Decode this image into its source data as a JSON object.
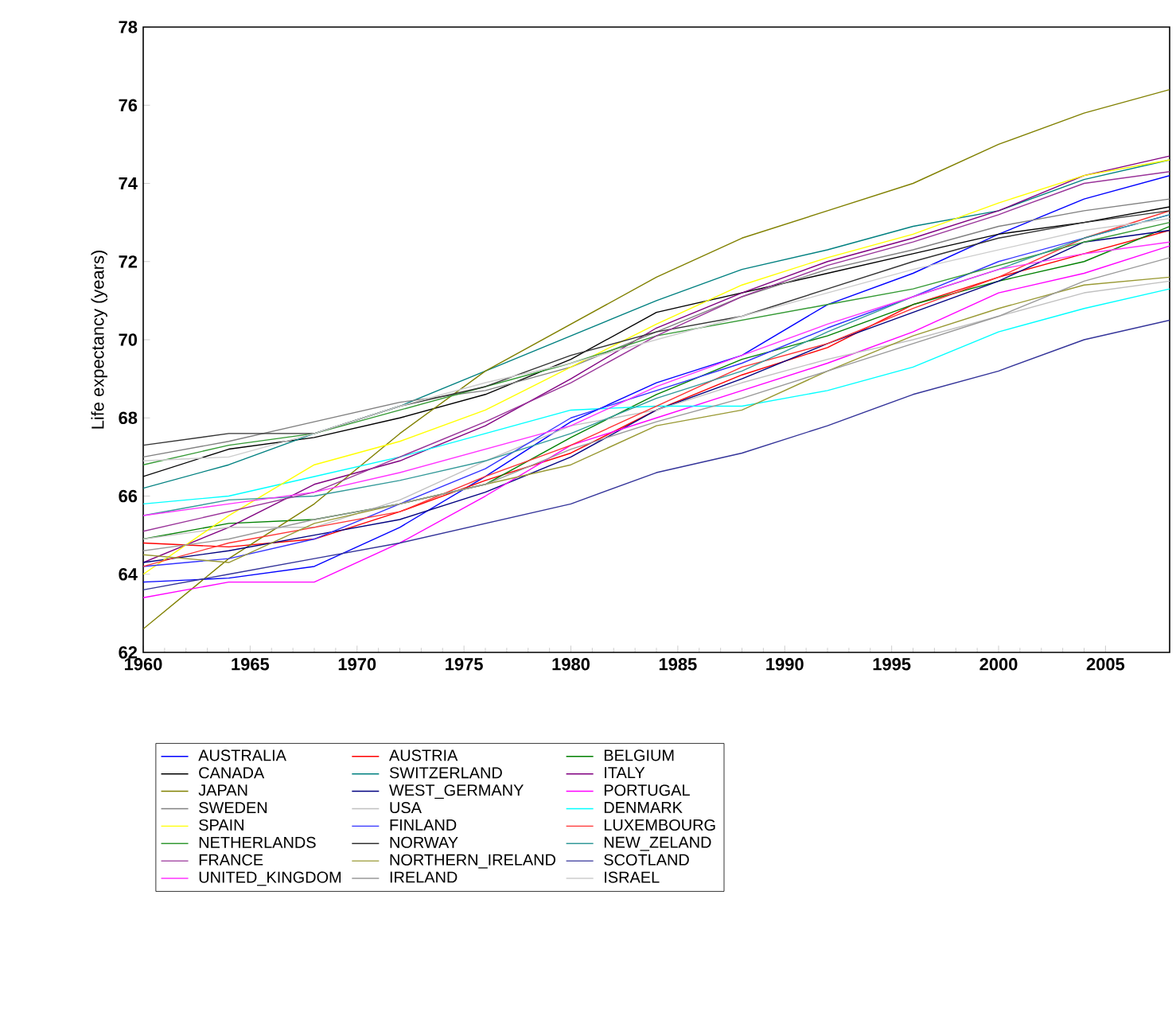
{
  "chart_data": {
    "type": "line",
    "ylabel": "Life expectancy (years)",
    "x": [
      1960,
      1964,
      1968,
      1972,
      1976,
      1980,
      1984,
      1988,
      1992,
      1996,
      2000,
      2004,
      2008
    ],
    "xlim": [
      1960,
      2008
    ],
    "xticks": [
      1960,
      1965,
      1970,
      1975,
      1980,
      1985,
      1990,
      1995,
      2000,
      2005
    ],
    "ylim": [
      62,
      78
    ],
    "yticks": [
      62,
      64,
      66,
      68,
      70,
      72,
      74,
      76,
      78
    ],
    "grid": false,
    "legend": "bottom",
    "marker": "none",
    "line_style": "solid",
    "series": [
      {
        "name": "AUSTRALIA",
        "color": "#0000ff",
        "values": [
          63.8,
          63.9,
          64.2,
          65.2,
          66.5,
          67.9,
          68.9,
          69.6,
          70.9,
          71.7,
          72.7,
          73.6,
          74.2
        ]
      },
      {
        "name": "AUSTRIA",
        "color": "#ff0000",
        "values": [
          64.8,
          64.7,
          64.9,
          65.6,
          66.4,
          67.1,
          68.2,
          69.1,
          69.8,
          70.9,
          71.6,
          72.2,
          72.8
        ]
      },
      {
        "name": "BELGIUM",
        "color": "#008000",
        "values": [
          64.9,
          65.3,
          65.4,
          65.8,
          66.3,
          67.5,
          68.6,
          69.5,
          70.1,
          70.9,
          71.5,
          72.0,
          72.9
        ]
      },
      {
        "name": "CANADA",
        "color": "#000000",
        "values": [
          66.5,
          67.2,
          67.5,
          68.0,
          68.6,
          69.5,
          70.7,
          71.2,
          71.7,
          72.2,
          72.7,
          73.0,
          73.4
        ]
      },
      {
        "name": "SWITZERLAND",
        "color": "#008080",
        "values": [
          66.2,
          66.8,
          67.6,
          68.3,
          69.2,
          70.1,
          71.0,
          71.8,
          72.3,
          72.9,
          73.3,
          74.1,
          74.6
        ]
      },
      {
        "name": "ITALY",
        "color": "#800080",
        "values": [
          64.3,
          65.2,
          66.3,
          66.9,
          67.8,
          69.0,
          70.3,
          71.2,
          72.0,
          72.6,
          73.3,
          74.2,
          74.7
        ]
      },
      {
        "name": "JAPAN",
        "color": "#808000",
        "values": [
          62.6,
          64.4,
          65.8,
          67.6,
          69.2,
          70.4,
          71.6,
          72.6,
          73.3,
          74.0,
          75.0,
          75.8,
          76.4
        ]
      },
      {
        "name": "WEST_GERMANY",
        "color": "#000080",
        "values": [
          64.3,
          64.6,
          65.0,
          65.4,
          66.1,
          67.0,
          68.2,
          69.0,
          69.9,
          70.7,
          71.5,
          72.5,
          72.8
        ]
      },
      {
        "name": "PORTUGAL",
        "color": "#ff00ff",
        "values": [
          63.4,
          63.8,
          63.8,
          64.8,
          66.0,
          67.3,
          68.0,
          68.7,
          69.4,
          70.2,
          71.2,
          71.7,
          72.4
        ]
      },
      {
        "name": "SWEDEN",
        "color": "#808080",
        "values": [
          67.0,
          67.4,
          67.9,
          68.4,
          68.7,
          69.3,
          70.2,
          71.1,
          71.8,
          72.3,
          72.9,
          73.3,
          73.6
        ]
      },
      {
        "name": "USA",
        "color": "#c0c0c0",
        "values": [
          64.9,
          65.2,
          65.2,
          65.9,
          66.9,
          67.8,
          68.2,
          68.9,
          69.5,
          70.0,
          70.6,
          71.2,
          71.5
        ]
      },
      {
        "name": "DENMARK",
        "color": "#00ffff",
        "values": [
          65.8,
          66.0,
          66.5,
          67.0,
          67.6,
          68.2,
          68.3,
          68.3,
          68.7,
          69.3,
          70.2,
          70.8,
          71.3
        ]
      },
      {
        "name": "SPAIN",
        "color": "#ffff00",
        "values": [
          64.0,
          65.5,
          66.8,
          67.4,
          68.2,
          69.3,
          70.4,
          71.4,
          72.1,
          72.7,
          73.5,
          74.2,
          74.6
        ]
      },
      {
        "name": "FINLAND",
        "color": "#3333ff",
        "values": [
          64.2,
          64.4,
          64.9,
          65.8,
          66.7,
          68.0,
          68.7,
          69.4,
          70.3,
          71.1,
          72.0,
          72.6,
          73.2
        ]
      },
      {
        "name": "LUXEMBOURG",
        "color": "#ff3333",
        "values": [
          64.2,
          64.8,
          65.2,
          65.6,
          66.5,
          67.3,
          68.3,
          69.3,
          69.9,
          70.8,
          71.6,
          72.6,
          73.3
        ]
      },
      {
        "name": "NETHERLANDS",
        "color": "#339933",
        "values": [
          66.8,
          67.3,
          67.6,
          68.2,
          68.8,
          69.4,
          70.1,
          70.5,
          70.9,
          71.3,
          71.9,
          72.5,
          73.0
        ]
      },
      {
        "name": "NORWAY",
        "color": "#333333",
        "values": [
          67.3,
          67.6,
          67.6,
          68.3,
          68.8,
          69.6,
          70.2,
          70.6,
          71.3,
          72.0,
          72.6,
          73.0,
          73.3
        ]
      },
      {
        "name": "NEW_ZELAND",
        "color": "#339999",
        "values": [
          65.5,
          65.9,
          66.0,
          66.4,
          66.9,
          67.6,
          68.5,
          69.2,
          70.2,
          71.1,
          71.8,
          72.6,
          73.2
        ]
      },
      {
        "name": "FRANCE",
        "color": "#993399",
        "values": [
          65.1,
          65.6,
          66.1,
          67.0,
          67.9,
          68.9,
          70.1,
          71.1,
          71.9,
          72.5,
          73.2,
          74.0,
          74.3
        ]
      },
      {
        "name": "NORTHERN_IRELAND",
        "color": "#999933",
        "values": [
          64.5,
          64.3,
          65.3,
          65.8,
          66.3,
          66.8,
          67.8,
          68.2,
          69.2,
          70.1,
          70.8,
          71.4,
          71.6
        ]
      },
      {
        "name": "SCOTLAND",
        "color": "#333399",
        "values": [
          63.6,
          64.0,
          64.4,
          64.8,
          65.3,
          65.8,
          66.6,
          67.1,
          67.8,
          68.6,
          69.2,
          70.0,
          70.5
        ]
      },
      {
        "name": "UNITED_KINGDOM",
        "color": "#ff33ff",
        "values": [
          65.5,
          65.8,
          66.1,
          66.6,
          67.2,
          67.8,
          68.8,
          69.6,
          70.4,
          71.1,
          71.8,
          72.2,
          72.5
        ]
      },
      {
        "name": "IRELAND",
        "color": "#999999",
        "values": [
          64.6,
          64.9,
          65.4,
          65.8,
          66.3,
          67.2,
          67.9,
          68.5,
          69.2,
          69.9,
          70.6,
          71.5,
          72.1
        ]
      },
      {
        "name": "ISRAEL",
        "color": "#cccccc",
        "values": [
          66.9,
          67.0,
          67.6,
          68.3,
          68.9,
          69.4,
          70.0,
          70.6,
          71.2,
          71.8,
          72.3,
          72.8,
          73.1
        ]
      }
    ]
  }
}
